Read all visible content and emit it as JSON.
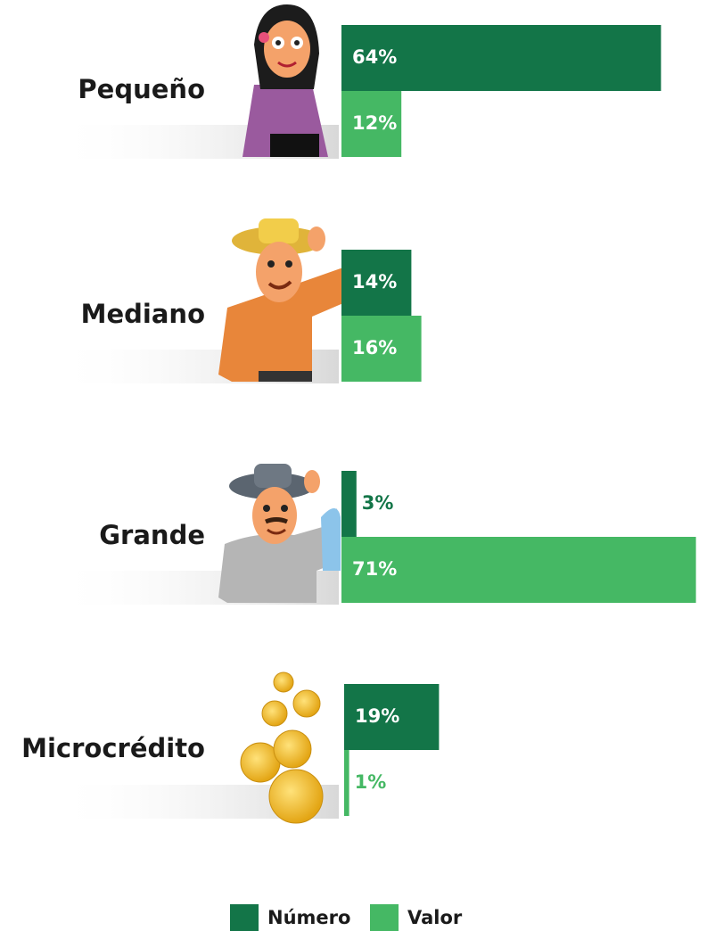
{
  "chart_data": {
    "type": "bar",
    "categories": [
      "Pequeño",
      "Mediano",
      "Grande",
      "Microcrédito"
    ],
    "series": [
      {
        "name": "Número",
        "color": "#137548",
        "values": [
          64,
          14,
          3,
          19
        ],
        "value_labels": [
          "64%",
          "14%",
          "3%",
          "19%"
        ]
      },
      {
        "name": "Valor",
        "color": "#45b864",
        "values": [
          12,
          16,
          71,
          1
        ],
        "value_labels": [
          "12%",
          "16%",
          "71%",
          "1%"
        ]
      }
    ]
  }
}
